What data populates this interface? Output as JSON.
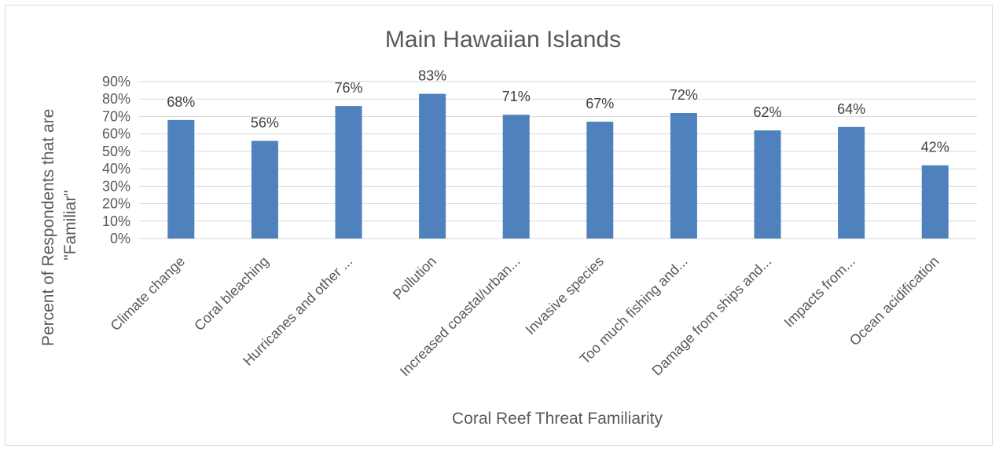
{
  "chart_data": {
    "type": "bar",
    "title": "Main Hawaiian Islands",
    "xlabel": "Coral Reef Threat Familiarity",
    "ylabel_lines": [
      "Percent of Respondents that are",
      "\"Familiar\""
    ],
    "ylim": [
      0,
      90
    ],
    "y_ticks": [
      "0%",
      "10%",
      "20%",
      "30%",
      "40%",
      "50%",
      "60%",
      "70%",
      "80%",
      "90%"
    ],
    "categories": [
      "Climate change",
      "Coral bleaching",
      "Hurricanes and other ...",
      "Pollution",
      "Increased coastal/urban...",
      "Invasive species",
      "Too much fishing and...",
      "Damage from ships and...",
      "Impacts from...",
      "Ocean acidification"
    ],
    "values": [
      68,
      56,
      76,
      83,
      71,
      67,
      72,
      62,
      64,
      42
    ],
    "data_labels": [
      "68%",
      "56%",
      "76%",
      "83%",
      "71%",
      "67%",
      "72%",
      "62%",
      "64%",
      "42%"
    ],
    "bar_color": "#4f81bd",
    "grid": true,
    "legend": "none"
  }
}
